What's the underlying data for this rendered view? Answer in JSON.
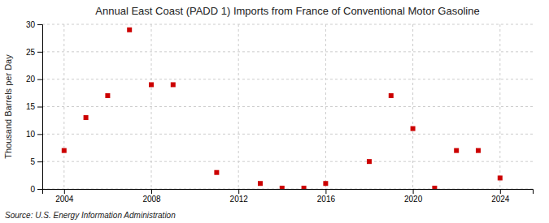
{
  "chart_data": {
    "type": "scatter",
    "title": "Annual East Coast (PADD 1) Imports from France of Conventional Motor Gasoline",
    "ylabel": "Thousand Barrels per Day",
    "source": "Source: U.S. Energy Information Administration",
    "x": [
      2004,
      2005,
      2006,
      2007,
      2008,
      2009,
      2011,
      2013,
      2014,
      2015,
      2016,
      2018,
      2019,
      2020,
      2021,
      2022,
      2023,
      2024
    ],
    "values": [
      7.0,
      13.0,
      17.0,
      29.0,
      19.0,
      19.0,
      3.0,
      1.0,
      0.15,
      0.15,
      1.0,
      5.0,
      17.0,
      11.0,
      0.15,
      7.0,
      7.0,
      2.0
    ],
    "color": "#cc0000",
    "marker": "square",
    "xlim": [
      2003.0,
      2025.5
    ],
    "ylim": [
      0,
      30
    ],
    "xticks": [
      2004,
      2008,
      2012,
      2016,
      2020,
      2024
    ],
    "yticks": [
      0,
      5,
      10,
      15,
      20,
      25,
      30
    ],
    "grid": true
  }
}
